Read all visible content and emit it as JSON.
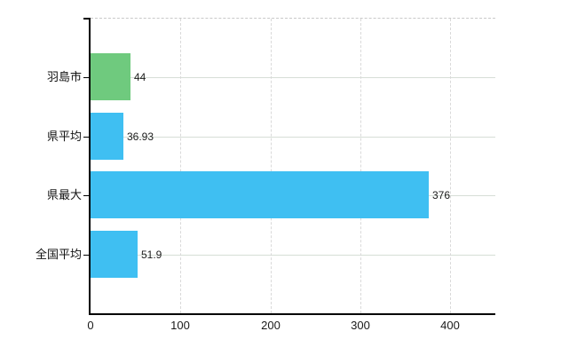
{
  "chart_data": {
    "type": "bar",
    "orientation": "horizontal",
    "title": "",
    "xlabel": "",
    "ylabel": "",
    "categories": [
      "羽島市",
      "県平均",
      "県最大",
      "全国平均"
    ],
    "values": [
      44,
      36.93,
      376,
      51.9
    ],
    "value_labels": [
      "44",
      "36.93",
      "376",
      "51.9"
    ],
    "bar_colors": [
      "#6fca7e",
      "#3fbff2",
      "#3fbff2",
      "#3fbff2"
    ],
    "xlim": [
      0,
      450
    ],
    "x_ticks": [
      0,
      100,
      200,
      300,
      400
    ],
    "x_tick_labels": [
      "0",
      "100",
      "200",
      "300",
      "400"
    ],
    "grid": true,
    "legend": false,
    "colors": {
      "bar_green": "#6fca7e",
      "bar_blue": "#3fbff2",
      "axis": "#000000",
      "horizontal_gridline": "#d6ded6",
      "vertical_gridline": "#d9d9d9",
      "plot_top_border": "#c8c8c8",
      "label_text": "#1a1a1a",
      "background": "#ffffff"
    }
  }
}
